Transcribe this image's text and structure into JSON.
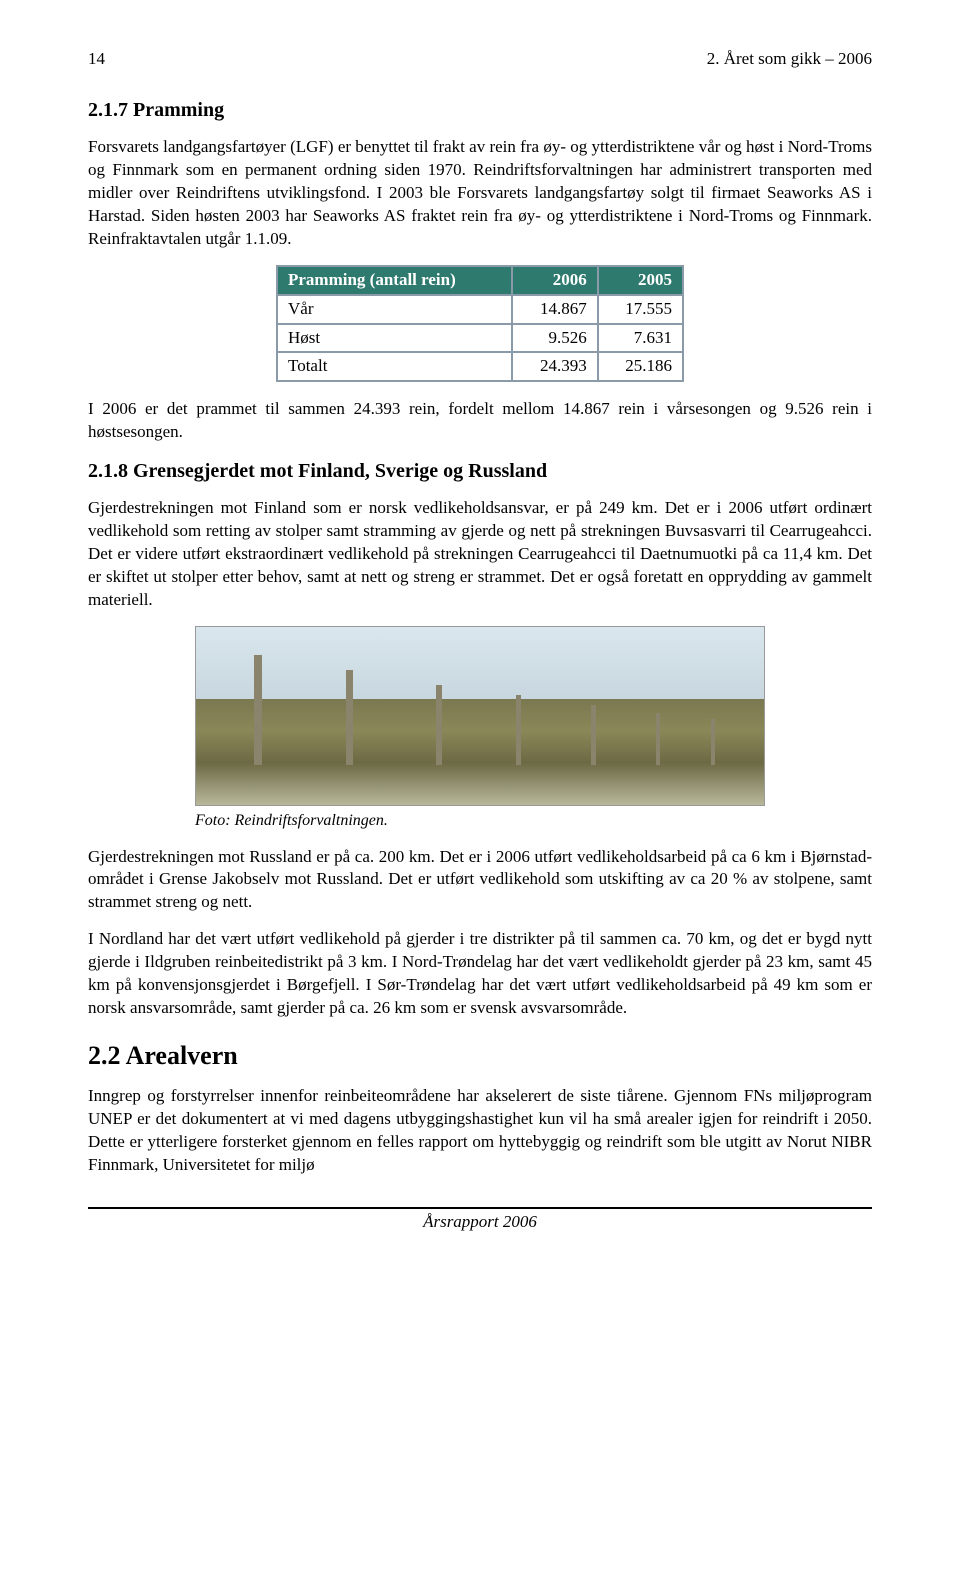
{
  "header": {
    "page_number": "14",
    "chapter": "2. Året som gikk – 2006"
  },
  "section_217": {
    "heading": "2.1.7 Pramming",
    "para1": "Forsvarets landgangsfartøyer (LGF) er benyttet til frakt av rein fra øy- og ytterdistriktene vår og høst i Nord-Troms og Finnmark som en permanent ordning siden 1970. Reindriftsforvaltningen har administrert transporten med midler over Reindriftens utviklingsfond. I 2003 ble Forsvarets landgangsfartøy solgt til firmaet Seaworks AS i Harstad. Siden høsten 2003 har Seaworks AS fraktet rein fra øy- og ytterdistriktene i Nord-Troms og Finnmark. Reinfraktavtalen utgår 1.1.09."
  },
  "table": {
    "header_bg": "#2f7a6f",
    "header_fg": "#ffffff",
    "border_color": "#8a9aa8",
    "columns": [
      "Pramming (antall rein)",
      "2006",
      "2005"
    ],
    "rows": [
      [
        "Vår",
        "14.867",
        "17.555"
      ],
      [
        "Høst",
        "9.526",
        "7.631"
      ],
      [
        "Totalt",
        "24.393",
        "25.186"
      ]
    ]
  },
  "section_217_after": {
    "para2": "I 2006 er det prammet til sammen 24.393 rein, fordelt mellom 14.867 rein i vårsesongen og 9.526 rein i høstsesongen."
  },
  "section_218": {
    "heading": "2.1.8 Grensegjerdet mot Finland, Sverige og Russland",
    "para1": "Gjerdestrekningen mot Finland som er norsk vedlikeholdsansvar, er på 249 km. Det er i 2006 utført ordinært vedlikehold som retting av stolper samt stramming av gjerde og nett på strekningen Buvsasvarri til Cearrugeahcci. Det er videre utført ekstraordinært vedlikehold på strekningen Cearrugeahcci til Daetnumuotki på ca 11,4 km. Det er skiftet ut stolper etter behov, samt at nett og streng er strammet. Det er også foretatt en opprydding av gammelt materiell.",
    "photo_caption": "Foto: Reindriftsforvaltningen.",
    "para2": "Gjerdestrekningen mot Russland er på ca. 200 km. Det er i 2006 utført vedlikeholdsarbeid på ca 6 km i Bjørnstad-området i Grense Jakobselv mot Russland. Det er utført vedlikehold som utskifting av ca 20 % av stolpene, samt strammet streng og nett.",
    "para3": "I Nordland har det vært utført vedlikehold på gjerder i tre distrikter på til sammen ca. 70 km, og det er bygd nytt gjerde i Ildgruben reinbeitedistrikt på 3 km. I Nord-Trøndelag har det vært vedlikeholdt gjerder på 23 km, samt 45 km på konvensjonsgjerdet i Børgefjell. I Sør-Trøndelag har det vært utført vedlikeholdsarbeid på 49 km som er norsk ansvarsområde, samt gjerder på ca. 26 km som er svensk avsvarsområde."
  },
  "section_22": {
    "heading": "2.2 Arealvern",
    "para1": "Inngrep og forstyrrelser innenfor reinbeiteområdene har akselerert de siste tiårene. Gjennom FNs miljøprogram UNEP er det dokumentert at vi med dagens utbyggingshastighet kun vil ha små arealer igjen for reindrift i 2050. Dette er ytterligere forsterket gjennom en felles rapport om hyttebyggig og reindrift som ble utgitt av Norut NIBR Finnmark, Universitetet for miljø"
  },
  "footer": {
    "text": "Årsrapport 2006"
  }
}
